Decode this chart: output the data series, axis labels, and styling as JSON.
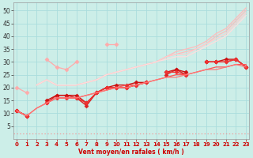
{
  "xlabel": "Vent moyen/en rafales ( km/h )",
  "background_color": "#cceee8",
  "grid_color": "#aadddd",
  "x_values": [
    0,
    1,
    2,
    3,
    4,
    5,
    6,
    7,
    8,
    9,
    10,
    11,
    12,
    13,
    14,
    15,
    16,
    17,
    18,
    19,
    20,
    21,
    22,
    23
  ],
  "series_light": [
    {
      "color": "#ffaaaa",
      "alpha": 1.0,
      "linewidth": 0.9,
      "marker": "D",
      "markersize": 2.5,
      "data": [
        20,
        18,
        null,
        31,
        28,
        27,
        30,
        null,
        null,
        37,
        37,
        null,
        null,
        null,
        null,
        null,
        null,
        null,
        null,
        null,
        null,
        null,
        null,
        null
      ]
    },
    {
      "color": "#ffbbbb",
      "alpha": 1.0,
      "linewidth": 0.9,
      "marker": null,
      "markersize": 0,
      "data": [
        20,
        null,
        21,
        23,
        21,
        21,
        21,
        22,
        23,
        25,
        26,
        27,
        28,
        29,
        30,
        32,
        34,
        35,
        36,
        38,
        41,
        43,
        47,
        51
      ]
    },
    {
      "color": "#ffbbbb",
      "alpha": 1.0,
      "linewidth": 0.9,
      "marker": null,
      "markersize": 0,
      "data": [
        20,
        null,
        21,
        23,
        21,
        21,
        21,
        22,
        23,
        25,
        26,
        27,
        28,
        29,
        30,
        32,
        33,
        34,
        35,
        37,
        40,
        42,
        46,
        50
      ]
    },
    {
      "color": "#ffcccc",
      "alpha": 1.0,
      "linewidth": 0.9,
      "marker": null,
      "markersize": 0,
      "data": [
        20,
        null,
        21,
        23,
        21,
        21,
        21,
        22,
        23,
        25,
        26,
        27,
        28,
        29,
        30,
        32,
        33,
        33,
        35,
        37,
        39,
        41,
        45,
        49
      ]
    },
    {
      "color": "#ffdddd",
      "alpha": 1.0,
      "linewidth": 0.9,
      "marker": null,
      "markersize": 0,
      "data": [
        20,
        null,
        21,
        23,
        21,
        21,
        21,
        22,
        23,
        25,
        26,
        27,
        28,
        29,
        30,
        31,
        32,
        32,
        34,
        36,
        38,
        40,
        44,
        48
      ]
    }
  ],
  "series_dark": [
    {
      "color": "#dd2222",
      "alpha": 1.0,
      "linewidth": 1.0,
      "marker": "D",
      "markersize": 2.5,
      "data": [
        11,
        9,
        null,
        14,
        17,
        17,
        16,
        13,
        18,
        20,
        20,
        20,
        21,
        22,
        null,
        25,
        27,
        25,
        null,
        30,
        30,
        30,
        31,
        28
      ]
    },
    {
      "color": "#cc1111",
      "alpha": 1.0,
      "linewidth": 1.0,
      "marker": "D",
      "markersize": 2.5,
      "data": [
        11,
        9,
        null,
        15,
        17,
        17,
        17,
        14,
        18,
        20,
        21,
        21,
        22,
        22,
        null,
        26,
        27,
        26,
        null,
        30,
        30,
        31,
        31,
        28
      ]
    },
    {
      "color": "#ee3333",
      "alpha": 1.0,
      "linewidth": 1.0,
      "marker": "D",
      "markersize": 2.5,
      "data": [
        11,
        9,
        null,
        14,
        16,
        16,
        16,
        14,
        18,
        20,
        20,
        20,
        21,
        22,
        null,
        26,
        26,
        25,
        null,
        30,
        30,
        30,
        31,
        28
      ]
    },
    {
      "color": "#ff5555",
      "alpha": 1.0,
      "linewidth": 0.9,
      "marker": null,
      "markersize": 0,
      "data": [
        11,
        9,
        12,
        14,
        16,
        16,
        16,
        17,
        18,
        19,
        20,
        21,
        21,
        22,
        23,
        24,
        25,
        25,
        26,
        27,
        28,
        28,
        29,
        29
      ]
    },
    {
      "color": "#ff7777",
      "alpha": 1.0,
      "linewidth": 0.9,
      "marker": null,
      "markersize": 0,
      "data": [
        11,
        9,
        12,
        14,
        16,
        16,
        16,
        17,
        18,
        19,
        20,
        20,
        21,
        22,
        23,
        24,
        24,
        25,
        26,
        27,
        27,
        28,
        29,
        28
      ]
    }
  ],
  "dashed_line_y": 2,
  "dashed_color": "#ff7777",
  "ylim": [
    0,
    53
  ],
  "yticks": [
    5,
    10,
    15,
    20,
    25,
    30,
    35,
    40,
    45,
    50
  ],
  "xlim": [
    -0.3,
    23.3
  ],
  "xticks": [
    0,
    1,
    2,
    3,
    4,
    5,
    6,
    7,
    8,
    9,
    10,
    11,
    12,
    13,
    14,
    15,
    16,
    17,
    18,
    19,
    20,
    21,
    22,
    23
  ]
}
